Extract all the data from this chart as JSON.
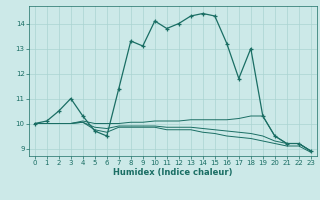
{
  "xlabel": "Humidex (Indice chaleur)",
  "bg_color": "#cce9e8",
  "grid_color": "#aad4d2",
  "line_color": "#1a6e64",
  "xlim": [
    -0.5,
    23.5
  ],
  "ylim": [
    8.7,
    14.7
  ],
  "xticks": [
    0,
    1,
    2,
    3,
    4,
    5,
    6,
    7,
    8,
    9,
    10,
    11,
    12,
    13,
    14,
    15,
    16,
    17,
    18,
    19,
    20,
    21,
    22,
    23
  ],
  "yticks": [
    9,
    10,
    11,
    12,
    13,
    14
  ],
  "lines": [
    {
      "x": [
        0,
        1,
        2,
        3,
        4,
        5,
        6,
        7,
        8,
        9,
        10,
        11,
        12,
        13,
        14,
        15,
        16,
        17,
        18,
        19,
        20,
        21,
        22,
        23
      ],
      "y": [
        10.0,
        10.1,
        10.5,
        11.0,
        10.3,
        9.7,
        9.5,
        11.4,
        13.3,
        13.1,
        14.1,
        13.8,
        14.0,
        14.3,
        14.4,
        14.3,
        13.2,
        11.8,
        13.0,
        10.3,
        9.5,
        9.2,
        9.2,
        8.9
      ],
      "marker": true
    },
    {
      "x": [
        0,
        1,
        2,
        3,
        4,
        5,
        6,
        7,
        8,
        9,
        10,
        11,
        12,
        13,
        14,
        15,
        16,
        17,
        18,
        19,
        20,
        21,
        22,
        23
      ],
      "y": [
        10.0,
        10.0,
        10.0,
        10.0,
        10.1,
        10.0,
        10.0,
        10.0,
        10.05,
        10.05,
        10.1,
        10.1,
        10.1,
        10.15,
        10.15,
        10.15,
        10.15,
        10.2,
        10.3,
        10.3,
        9.5,
        9.2,
        9.2,
        8.9
      ],
      "marker": false
    },
    {
      "x": [
        0,
        1,
        2,
        3,
        4,
        5,
        6,
        7,
        8,
        9,
        10,
        11,
        12,
        13,
        14,
        15,
        16,
        17,
        18,
        19,
        20,
        21,
        22,
        23
      ],
      "y": [
        10.0,
        10.0,
        10.0,
        10.0,
        10.05,
        9.85,
        9.8,
        9.9,
        9.9,
        9.9,
        9.9,
        9.85,
        9.85,
        9.85,
        9.8,
        9.75,
        9.7,
        9.65,
        9.6,
        9.5,
        9.3,
        9.2,
        9.2,
        8.9
      ],
      "marker": false
    },
    {
      "x": [
        0,
        1,
        2,
        3,
        4,
        5,
        6,
        7,
        8,
        9,
        10,
        11,
        12,
        13,
        14,
        15,
        16,
        17,
        18,
        19,
        20,
        21,
        22,
        23
      ],
      "y": [
        10.0,
        10.0,
        10.0,
        10.0,
        10.05,
        9.75,
        9.65,
        9.85,
        9.85,
        9.85,
        9.85,
        9.75,
        9.75,
        9.75,
        9.65,
        9.6,
        9.5,
        9.45,
        9.4,
        9.3,
        9.2,
        9.1,
        9.1,
        8.85
      ],
      "marker": false
    }
  ]
}
